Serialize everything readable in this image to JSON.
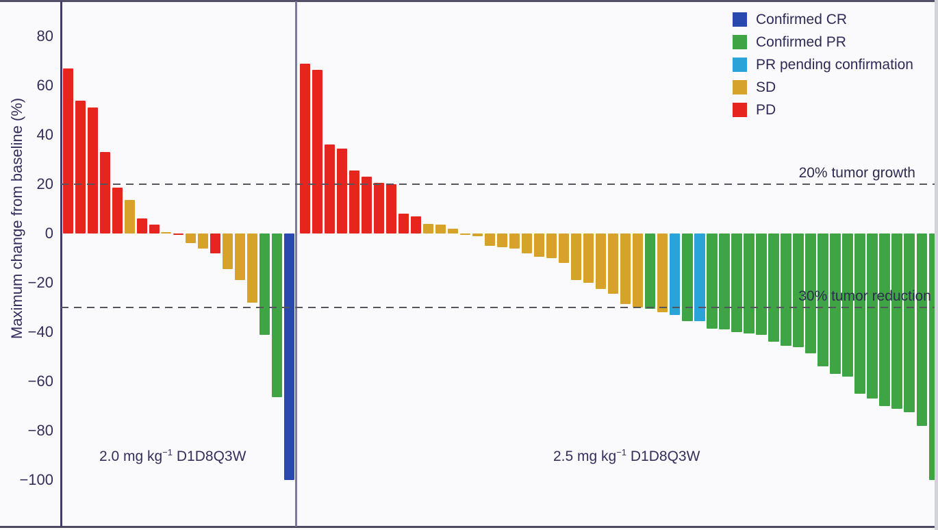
{
  "chart_data": {
    "type": "bar",
    "subtype": "waterfall",
    "title": "",
    "xlabel": "",
    "ylabel": "Maximum change from baseline (%)",
    "ylim": [
      -119,
      94
    ],
    "yticks": [
      80,
      60,
      40,
      20,
      0,
      -20,
      -40,
      -60,
      -80,
      -100
    ],
    "grid": false,
    "legend_position": "top-right",
    "legend": [
      {
        "key": "CR",
        "label": "Confirmed CR",
        "color": "#2a49ae"
      },
      {
        "key": "PR",
        "label": "Confirmed PR",
        "color": "#3fa544"
      },
      {
        "key": "PRpending",
        "label": "PR pending confirmation",
        "color": "#2aa3d8"
      },
      {
        "key": "SD",
        "label": "SD",
        "color": "#d6a22a"
      },
      {
        "key": "PD",
        "label": "PD",
        "color": "#e6251e"
      }
    ],
    "reference_lines": [
      {
        "y": 20,
        "label": "20% tumor growth"
      },
      {
        "y": -30,
        "label": "30% tumor reduction"
      }
    ],
    "groups": [
      {
        "label": "2.0 mg kg⁻¹ D1D8Q3W",
        "label_prefix": "2.0 mg kg",
        "label_sup": "−1",
        "label_suffix": " D1D8Q3W",
        "bars": [
          {
            "value": 67,
            "response": "PD"
          },
          {
            "value": 54,
            "response": "PD"
          },
          {
            "value": 51,
            "response": "PD"
          },
          {
            "value": 33,
            "response": "PD"
          },
          {
            "value": 18.5,
            "response": "PD"
          },
          {
            "value": 13.5,
            "response": "SD"
          },
          {
            "value": 6,
            "response": "PD"
          },
          {
            "value": 3.5,
            "response": "PD"
          },
          {
            "value": 0.5,
            "response": "SD"
          },
          {
            "value": -0.5,
            "response": "PD"
          },
          {
            "value": -4,
            "response": "SD"
          },
          {
            "value": -6,
            "response": "SD"
          },
          {
            "value": -8,
            "response": "PD"
          },
          {
            "value": -14.5,
            "response": "SD"
          },
          {
            "value": -19,
            "response": "SD"
          },
          {
            "value": -28,
            "response": "SD"
          },
          {
            "value": -41,
            "response": "PR"
          },
          {
            "value": -66.5,
            "response": "PR"
          },
          {
            "value": -100,
            "response": "CR"
          }
        ]
      },
      {
        "label": "2.5 mg kg⁻¹ D1D8Q3W",
        "label_prefix": "2.5 mg kg",
        "label_sup": "−1",
        "label_suffix": " D1D8Q3W",
        "bars": [
          {
            "value": 69,
            "response": "PD"
          },
          {
            "value": 66.5,
            "response": "PD"
          },
          {
            "value": 36,
            "response": "PD"
          },
          {
            "value": 34.5,
            "response": "PD"
          },
          {
            "value": 25.5,
            "response": "PD"
          },
          {
            "value": 23,
            "response": "PD"
          },
          {
            "value": 20.5,
            "response": "PD"
          },
          {
            "value": 20,
            "response": "PD"
          },
          {
            "value": 8,
            "response": "PD"
          },
          {
            "value": 7,
            "response": "PD"
          },
          {
            "value": 4,
            "response": "SD"
          },
          {
            "value": 3.5,
            "response": "SD"
          },
          {
            "value": 2,
            "response": "SD"
          },
          {
            "value": -0.5,
            "response": "SD"
          },
          {
            "value": -1,
            "response": "SD"
          },
          {
            "value": -5,
            "response": "SD"
          },
          {
            "value": -5.5,
            "response": "SD"
          },
          {
            "value": -6,
            "response": "SD"
          },
          {
            "value": -8,
            "response": "SD"
          },
          {
            "value": -9.5,
            "response": "SD"
          },
          {
            "value": -10,
            "response": "SD"
          },
          {
            "value": -12,
            "response": "SD"
          },
          {
            "value": -19,
            "response": "SD"
          },
          {
            "value": -20,
            "response": "SD"
          },
          {
            "value": -22.5,
            "response": "SD"
          },
          {
            "value": -24.5,
            "response": "SD"
          },
          {
            "value": -28.5,
            "response": "SD"
          },
          {
            "value": -30,
            "response": "SD"
          },
          {
            "value": -30.5,
            "response": "PR"
          },
          {
            "value": -32,
            "response": "SD"
          },
          {
            "value": -33,
            "response": "PRpending"
          },
          {
            "value": -35.5,
            "response": "PR"
          },
          {
            "value": -35.5,
            "response": "PRpending"
          },
          {
            "value": -38.5,
            "response": "PR"
          },
          {
            "value": -39,
            "response": "PR"
          },
          {
            "value": -40,
            "response": "PR"
          },
          {
            "value": -40.5,
            "response": "PR"
          },
          {
            "value": -41,
            "response": "PR"
          },
          {
            "value": -44,
            "response": "PR"
          },
          {
            "value": -45.5,
            "response": "PR"
          },
          {
            "value": -46,
            "response": "PR"
          },
          {
            "value": -48.5,
            "response": "PR"
          },
          {
            "value": -54,
            "response": "PR"
          },
          {
            "value": -57,
            "response": "PR"
          },
          {
            "value": -58,
            "response": "PR"
          },
          {
            "value": -65,
            "response": "PR"
          },
          {
            "value": -67,
            "response": "PR"
          },
          {
            "value": -70,
            "response": "PR"
          },
          {
            "value": -71,
            "response": "PR"
          },
          {
            "value": -72.5,
            "response": "PR"
          },
          {
            "value": -78,
            "response": "PR"
          },
          {
            "value": -100,
            "response": "PR"
          }
        ]
      }
    ]
  }
}
